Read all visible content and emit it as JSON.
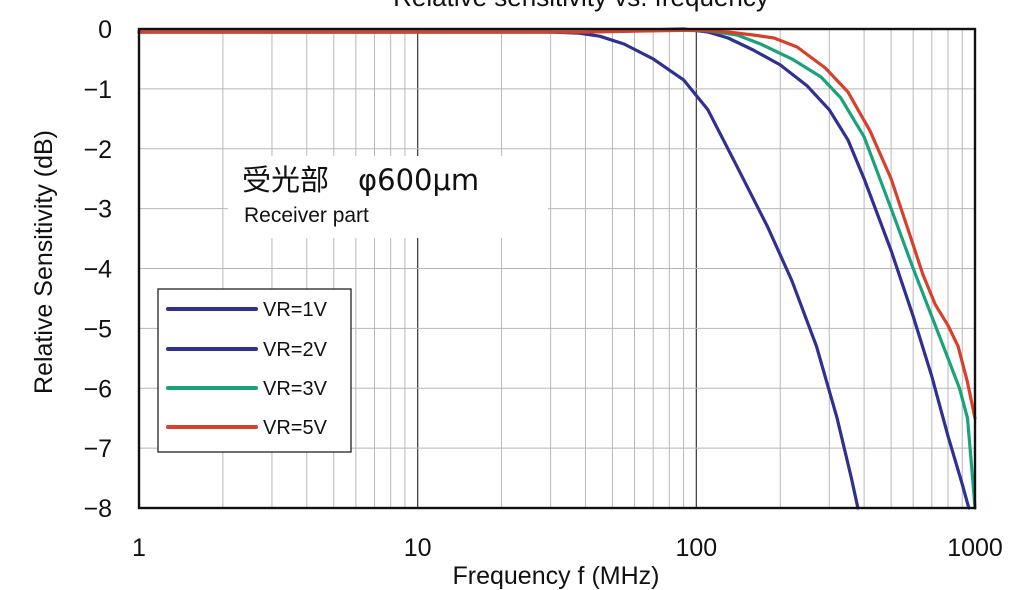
{
  "chart_data": {
    "type": "line",
    "title": "Relative sensitivity vs. frequency",
    "xlabel": "Frequency f (MHz)",
    "ylabel": "Relative Sensitivity (dB)",
    "x_scale": "log",
    "xlim": [
      1,
      1000
    ],
    "ylim": [
      -8,
      0
    ],
    "x_ticks": [
      "1",
      "10",
      "100",
      "1000"
    ],
    "y_ticks": [
      "0",
      "−1",
      "−2",
      "−3",
      "−4",
      "−5",
      "−6",
      "−7",
      "−8"
    ],
    "grid": true,
    "legend_position": "bottom-left",
    "annotations": [
      "受光部　φ600μm",
      "Receiver part"
    ],
    "series": [
      {
        "name": "VR=1V",
        "color": "#2e3192",
        "points": [
          [
            1,
            -0.05
          ],
          [
            30,
            -0.05
          ],
          [
            38,
            -0.07
          ],
          [
            45,
            -0.12
          ],
          [
            55,
            -0.25
          ],
          [
            70,
            -0.5
          ],
          [
            90,
            -0.85
          ],
          [
            110,
            -1.35
          ],
          [
            140,
            -2.3
          ],
          [
            180,
            -3.3
          ],
          [
            220,
            -4.2
          ],
          [
            270,
            -5.3
          ],
          [
            320,
            -6.5
          ],
          [
            360,
            -7.5
          ],
          [
            380,
            -8.0
          ]
        ]
      },
      {
        "name": "VR=2V",
        "color": "#2e3192",
        "points": [
          [
            1,
            -0.05
          ],
          [
            40,
            -0.05
          ],
          [
            60,
            -0.02
          ],
          [
            90,
            0.0
          ],
          [
            110,
            -0.05
          ],
          [
            130,
            -0.15
          ],
          [
            160,
            -0.35
          ],
          [
            200,
            -0.6
          ],
          [
            250,
            -0.95
          ],
          [
            300,
            -1.35
          ],
          [
            350,
            -1.85
          ],
          [
            400,
            -2.5
          ],
          [
            500,
            -3.7
          ],
          [
            600,
            -4.8
          ],
          [
            700,
            -5.8
          ],
          [
            800,
            -6.8
          ],
          [
            900,
            -7.6
          ],
          [
            950,
            -8.0
          ]
        ]
      },
      {
        "name": "VR=3V",
        "color": "#1aa37a",
        "points": [
          [
            1,
            -0.05
          ],
          [
            40,
            -0.05
          ],
          [
            80,
            -0.02
          ],
          [
            110,
            -0.03
          ],
          [
            140,
            -0.1
          ],
          [
            170,
            -0.25
          ],
          [
            220,
            -0.5
          ],
          [
            280,
            -0.8
          ],
          [
            330,
            -1.15
          ],
          [
            400,
            -1.8
          ],
          [
            500,
            -3.0
          ],
          [
            600,
            -4.0
          ],
          [
            700,
            -4.8
          ],
          [
            800,
            -5.5
          ],
          [
            880,
            -6.0
          ],
          [
            940,
            -6.5
          ],
          [
            980,
            -7.5
          ],
          [
            1000,
            -8.0
          ]
        ]
      },
      {
        "name": "VR=5V",
        "color": "#d7412c",
        "points": [
          [
            1,
            -0.05
          ],
          [
            40,
            -0.05
          ],
          [
            100,
            -0.02
          ],
          [
            130,
            -0.05
          ],
          [
            160,
            -0.1
          ],
          [
            190,
            -0.15
          ],
          [
            230,
            -0.3
          ],
          [
            290,
            -0.65
          ],
          [
            350,
            -1.05
          ],
          [
            420,
            -1.7
          ],
          [
            500,
            -2.5
          ],
          [
            580,
            -3.4
          ],
          [
            650,
            -4.1
          ],
          [
            720,
            -4.6
          ],
          [
            800,
            -4.95
          ],
          [
            870,
            -5.3
          ],
          [
            940,
            -5.9
          ],
          [
            1000,
            -6.5
          ]
        ]
      }
    ]
  }
}
